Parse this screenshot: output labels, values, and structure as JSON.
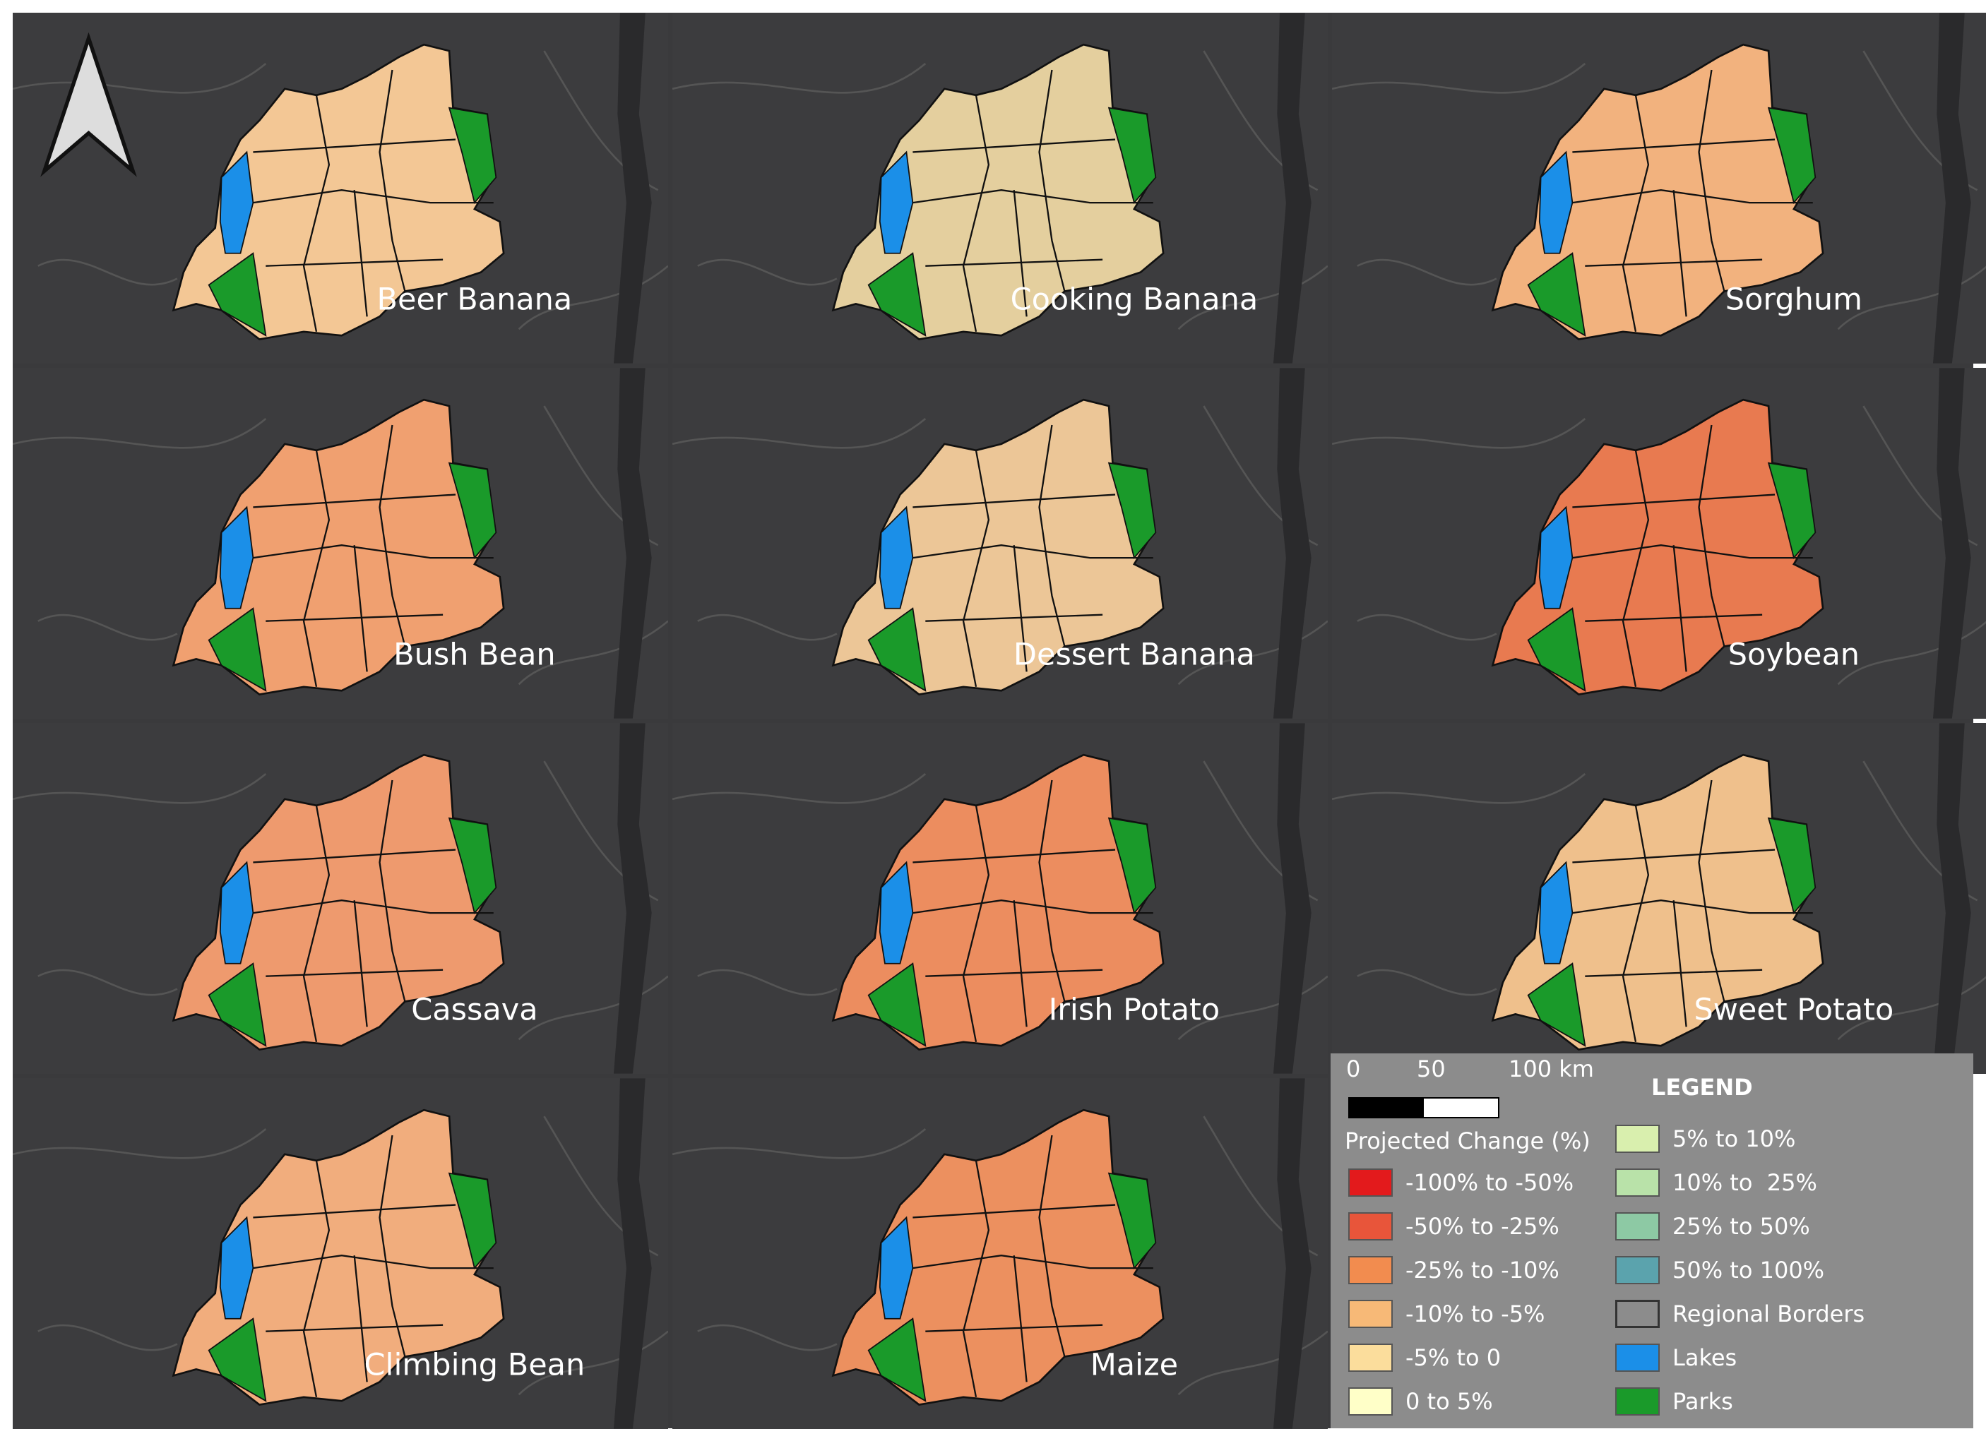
{
  "panels": [
    {
      "label": "Beer Banana"
    },
    {
      "label": "Cooking Banana"
    },
    {
      "label": "Sorghum"
    },
    {
      "label": "Bush Bean"
    },
    {
      "label": "Dessert Banana"
    },
    {
      "label": "Soybean"
    },
    {
      "label": "Cassava"
    },
    {
      "label": "Irish Potato"
    },
    {
      "label": "Sweet Potato"
    },
    {
      "label": "Climbing Bean"
    },
    {
      "label": "Maize"
    }
  ],
  "legend": {
    "title": "LEGEND",
    "subtitle": "Projected Change (%)",
    "scale": [
      "0",
      "50",
      "100 km"
    ],
    "items": [
      {
        "label": "-100% to -50%",
        "color": "#e31a1c"
      },
      {
        "label": "-50% to -25%",
        "color": "#e8553a"
      },
      {
        "label": "-25% to -10%",
        "color": "#f28c4f"
      },
      {
        "label": "-10% to -5%",
        "color": "#f7b977"
      },
      {
        "label": "-5% to 0",
        "color": "#fbdd9c"
      },
      {
        "label": "0 to 5%",
        "color": "#ffffc8"
      },
      {
        "label": "5% to 10%",
        "color": "#d9efae"
      },
      {
        "label": "10% to  25%",
        "color": "#b9e2a9"
      },
      {
        "label": "25% to 50%",
        "color": "#8dc9a4"
      },
      {
        "label": "50% to 100%",
        "color": "#5ba3ad"
      },
      {
        "label": "Regional Borders",
        "color": "#8c8c8c"
      },
      {
        "label": "Lakes",
        "color": "#1b8fe8"
      },
      {
        "label": "Parks",
        "color": "#1a9a2a"
      }
    ]
  }
}
